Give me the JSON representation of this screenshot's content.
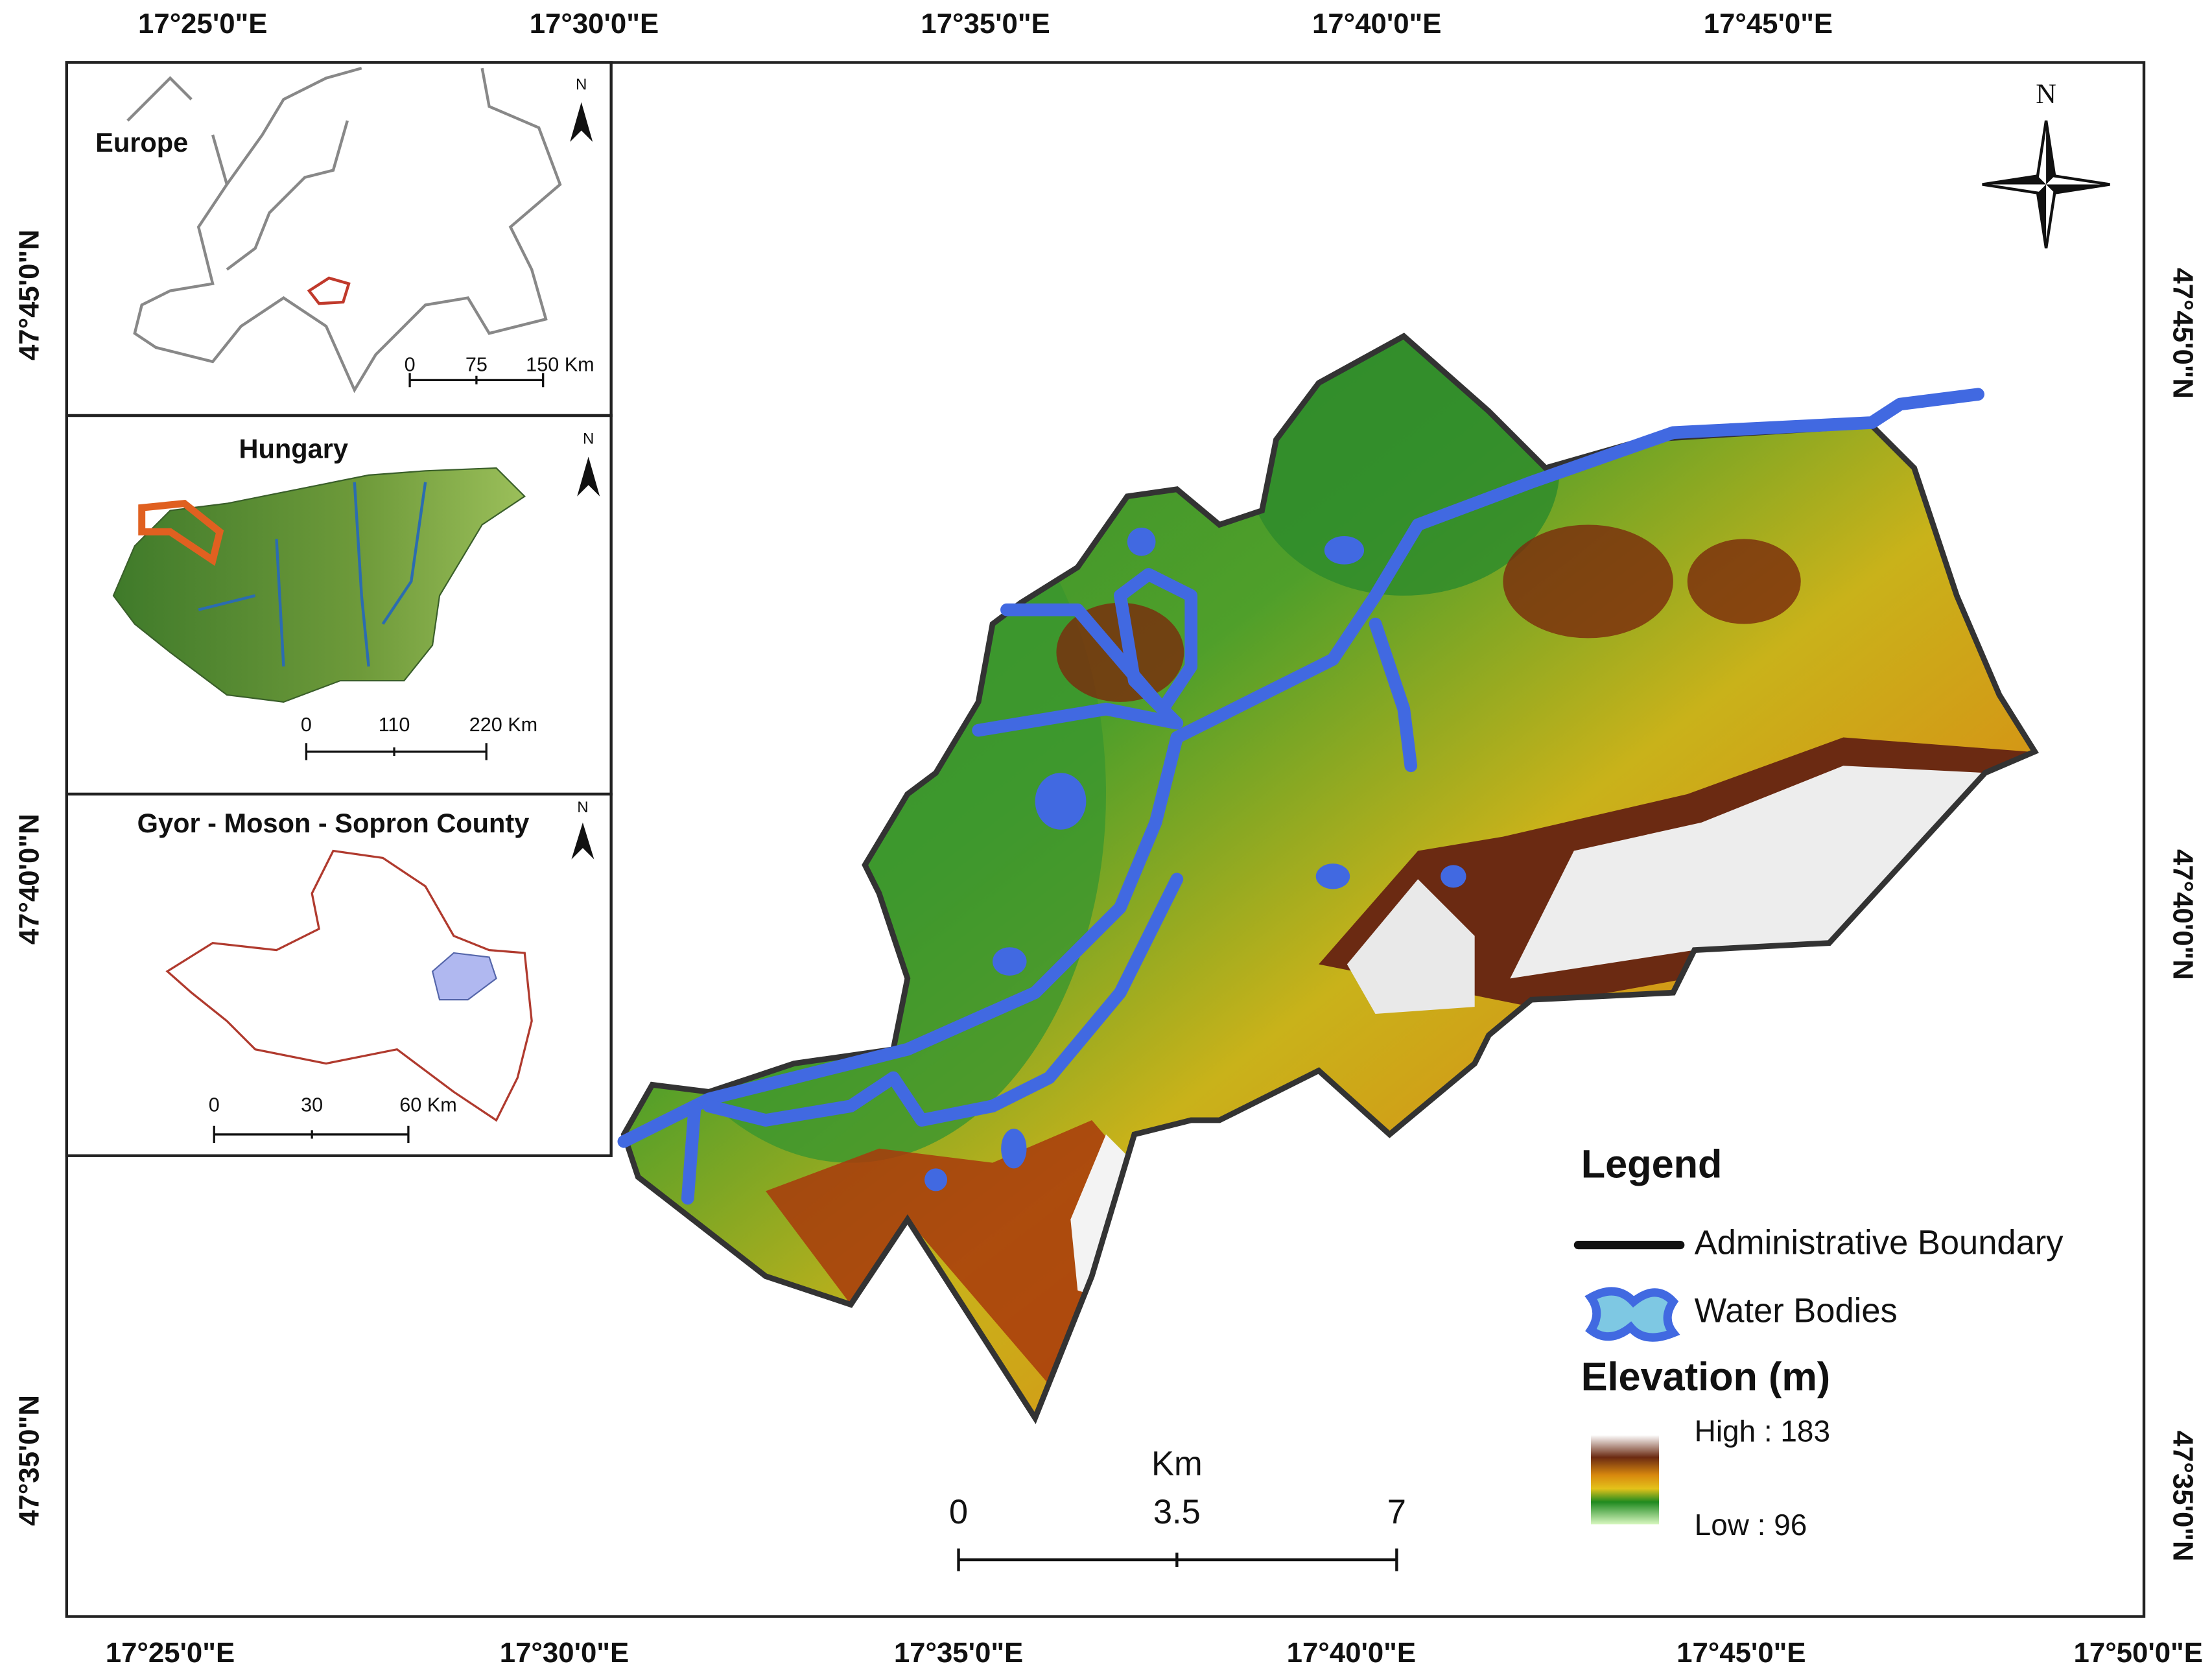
{
  "map": {
    "top_labels": [
      "17°25'0\"E",
      "17°30'0\"E",
      "17°35'0\"E",
      "17°40'0\"E",
      "17°45'0\"E"
    ],
    "bottom_labels": [
      "17°25'0\"E",
      "17°30'0\"E",
      "17°35'0\"E",
      "17°40'0\"E",
      "17°45'0\"E",
      "17°50'0\"E"
    ],
    "left_labels": [
      "47°45'0\"N",
      "47°40'0\"N",
      "47°35'0\"N"
    ],
    "right_labels": [
      "47°45'0\"N",
      "47°40'0\"N",
      "47°35'0\"N"
    ],
    "north": "N",
    "scale_bar": {
      "unit": "Km",
      "labels": [
        "0",
        "3.5",
        "7"
      ]
    }
  },
  "insets": [
    {
      "title": "Europe",
      "north": "N",
      "scale": [
        "0",
        "75",
        "150 Km"
      ]
    },
    {
      "title": "Hungary",
      "north": "N",
      "scale": [
        "0",
        "110",
        "220 Km"
      ]
    },
    {
      "title": "Gyor - Moson - Sopron County",
      "north": "N",
      "scale": [
        "0",
        "30",
        "60 Km"
      ]
    }
  ],
  "legend": {
    "title": "Legend",
    "items": [
      "Administrative Boundary",
      "Water Bodies"
    ],
    "elevation_title": "Elevation (m)",
    "high": "High : 183",
    "low": "Low : 96"
  }
}
